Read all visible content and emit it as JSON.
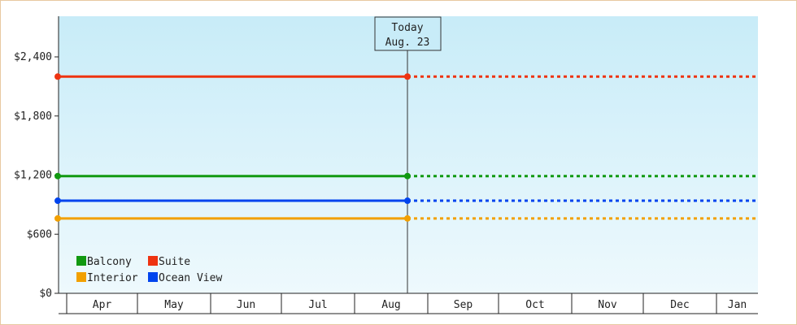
{
  "chart_data": {
    "type": "line",
    "ylim": [
      0,
      2800
    ],
    "yticks": [
      {
        "value": 0,
        "label": "$0"
      },
      {
        "value": 600,
        "label": "$600"
      },
      {
        "value": 1200,
        "label": "$1,200"
      },
      {
        "value": 1800,
        "label": "$1,800"
      },
      {
        "value": 2400,
        "label": "$2,400"
      }
    ],
    "months": [
      "Apr",
      "May",
      "Jun",
      "Jul",
      "Aug",
      "Sep",
      "Oct",
      "Nov",
      "Dec",
      "Jan"
    ],
    "today": {
      "label": "Today",
      "date": "Aug. 23"
    },
    "series": [
      {
        "name": "Suite",
        "color": "#ee3311",
        "value": 2200
      },
      {
        "name": "Balcony",
        "color": "#119911",
        "value": 1190
      },
      {
        "name": "Ocean View",
        "color": "#0044ee",
        "value": 940
      },
      {
        "name": "Interior",
        "color": "#f2a000",
        "value": 760
      }
    ],
    "legend_order": [
      "Balcony",
      "Suite",
      "Interior",
      "Ocean View"
    ],
    "legend_placement": "bottom-left",
    "actual_style": "solid until today",
    "forecast_style": "dotted after today",
    "grid": false
  }
}
